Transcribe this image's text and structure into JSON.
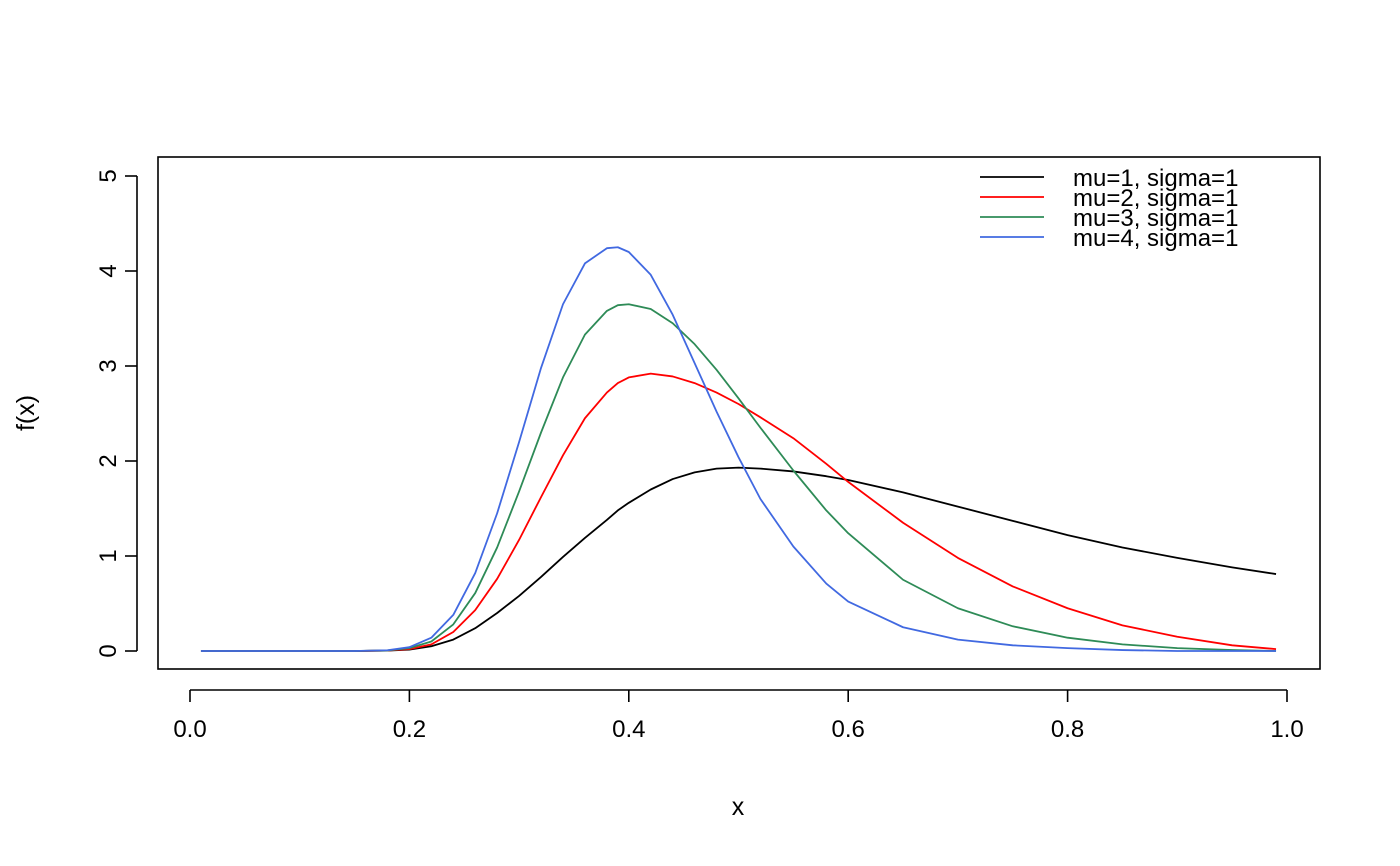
{
  "chart_data": {
    "type": "line",
    "xlabel": "x",
    "ylabel": "f(x)",
    "xlim": [
      0.0,
      1.0
    ],
    "ylim": [
      0,
      5
    ],
    "x_ticks": [
      "0.0",
      "0.2",
      "0.4",
      "0.6",
      "0.8",
      "1.0"
    ],
    "y_ticks": [
      "0",
      "1",
      "2",
      "3",
      "4",
      "5"
    ],
    "legend": "top-right",
    "grid": false,
    "x": [
      0.01,
      0.05,
      0.1,
      0.15,
      0.18,
      0.2,
      0.22,
      0.24,
      0.26,
      0.28,
      0.3,
      0.32,
      0.34,
      0.36,
      0.38,
      0.39,
      0.4,
      0.42,
      0.44,
      0.46,
      0.48,
      0.5,
      0.52,
      0.55,
      0.58,
      0.6,
      0.65,
      0.7,
      0.75,
      0.8,
      0.85,
      0.9,
      0.95,
      0.99
    ],
    "series": [
      {
        "name": "mu=1, sigma=1",
        "color": "#000000",
        "values": [
          0,
          0,
          0,
          0,
          0.004,
          0.015,
          0.05,
          0.12,
          0.24,
          0.4,
          0.58,
          0.78,
          0.99,
          1.19,
          1.38,
          1.48,
          1.56,
          1.7,
          1.81,
          1.88,
          1.92,
          1.93,
          1.92,
          1.89,
          1.84,
          1.8,
          1.67,
          1.52,
          1.37,
          1.22,
          1.09,
          0.98,
          0.88,
          0.81
        ]
      },
      {
        "name": "mu=2, sigma=1",
        "color": "#ff0000",
        "values": [
          0,
          0,
          0,
          0,
          0.005,
          0.02,
          0.07,
          0.2,
          0.43,
          0.76,
          1.17,
          1.62,
          2.06,
          2.45,
          2.72,
          2.82,
          2.88,
          2.92,
          2.89,
          2.82,
          2.72,
          2.6,
          2.46,
          2.24,
          1.97,
          1.78,
          1.35,
          0.98,
          0.68,
          0.45,
          0.27,
          0.15,
          0.06,
          0.02
        ]
      },
      {
        "name": "mu=3, sigma=1",
        "color": "#2e8b57",
        "values": [
          0,
          0,
          0,
          0,
          0.006,
          0.03,
          0.1,
          0.28,
          0.61,
          1.09,
          1.68,
          2.3,
          2.88,
          3.33,
          3.58,
          3.64,
          3.65,
          3.6,
          3.45,
          3.23,
          2.96,
          2.66,
          2.35,
          1.9,
          1.48,
          1.24,
          0.75,
          0.45,
          0.26,
          0.14,
          0.07,
          0.03,
          0.01,
          0
        ]
      },
      {
        "name": "mu=4, sigma=1",
        "color": "#4169e1",
        "values": [
          0,
          0,
          0,
          0,
          0.008,
          0.04,
          0.14,
          0.38,
          0.82,
          1.45,
          2.2,
          2.98,
          3.65,
          4.08,
          4.24,
          4.25,
          4.2,
          3.96,
          3.54,
          3.03,
          2.52,
          2.04,
          1.6,
          1.1,
          0.71,
          0.52,
          0.25,
          0.12,
          0.06,
          0.03,
          0.01,
          0,
          0,
          0
        ]
      }
    ]
  }
}
